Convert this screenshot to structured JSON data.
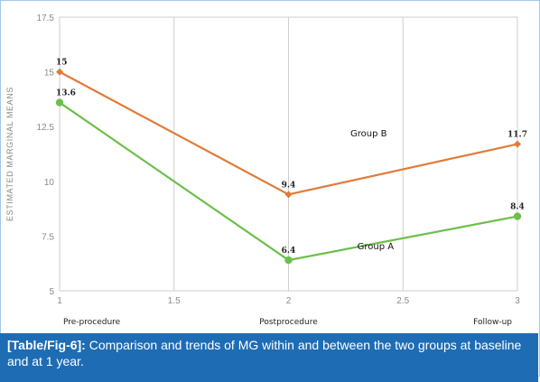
{
  "chart_data": {
    "type": "line",
    "ylabel": "ESTIMATED MARGINAL MEANS",
    "xlabel": "",
    "x_ticks": [
      1,
      1.5,
      2,
      2.5,
      3
    ],
    "x_tick_labels": [
      "1",
      "1.5",
      "2",
      "2.5",
      "3"
    ],
    "y_ticks": [
      5,
      7.5,
      10,
      12.5,
      15,
      17.5
    ],
    "y_tick_labels": [
      "5",
      "7.5",
      "10",
      "12.5",
      "15",
      "17.5"
    ],
    "xlim": [
      1,
      3
    ],
    "ylim": [
      5,
      17.5
    ],
    "categories": [
      "Pre-procedure",
      "Postprocedure",
      "Follow-up"
    ],
    "x": [
      1,
      2,
      3
    ],
    "grid": "vertical",
    "series": [
      {
        "name": "Group B",
        "values": [
          15,
          9.4,
          11.7
        ],
        "labels": [
          "15",
          "9.4",
          "11.7"
        ],
        "color": "#e07b3a",
        "marker": "diamond"
      },
      {
        "name": "Group A",
        "values": [
          13.6,
          6.4,
          8.4
        ],
        "labels": [
          "13.6",
          "6.4",
          "8.4"
        ],
        "color": "#6cbf4a",
        "marker": "circle"
      }
    ]
  },
  "caption": {
    "label": "[Table/Fig-6]:",
    "text": " Comparison and trends of MG within and between the two groups at baseline and at 1 year."
  },
  "colors": {
    "caption_bg": "#1e6cb4",
    "border": "#9ec9ec",
    "grid": "#cfcfcf"
  }
}
